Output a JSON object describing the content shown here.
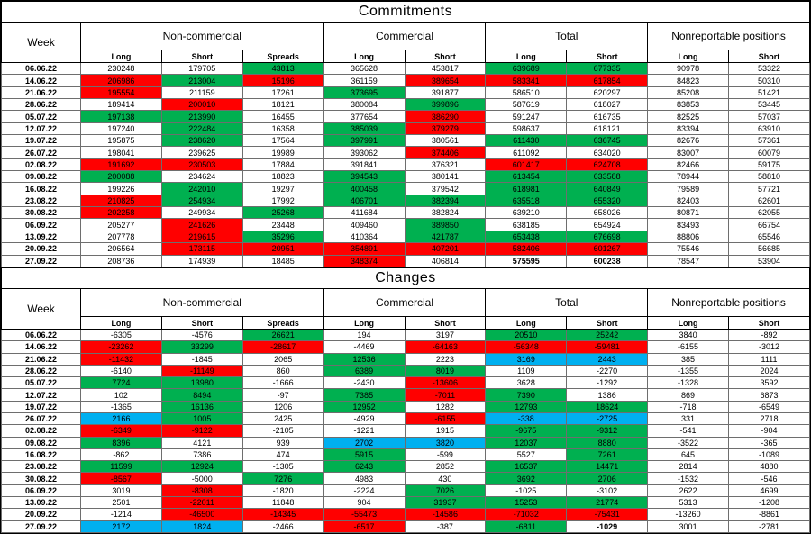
{
  "colors": {
    "g": "#00b050",
    "r": "#ff0000",
    "c": "#00b0f0"
  },
  "headers": {
    "week": "Week",
    "groups": [
      {
        "label": "Non-commercial"
      },
      {
        "label": "Commercial"
      },
      {
        "label": "Total"
      },
      {
        "label": "Nonreportable positions"
      }
    ],
    "columns": [
      "Long",
      "Short",
      "Spreads",
      "Long",
      "Short",
      "Long",
      "Short",
      "Long",
      "Short"
    ]
  },
  "commitments": {
    "title": "Commitments",
    "rows": [
      {
        "date": "06.06.22",
        "values": [
          "230248",
          "179705",
          "43813",
          "365628",
          "453817",
          "639689",
          "677335",
          "90978",
          "53322"
        ],
        "colors": [
          "w",
          "w",
          "g",
          "w",
          "w",
          "g",
          "g",
          "w",
          "w"
        ]
      },
      {
        "date": "14.06.22",
        "values": [
          "206986",
          "213004",
          "15196",
          "361159",
          "389654",
          "583341",
          "617854",
          "84823",
          "50310"
        ],
        "colors": [
          "r",
          "g",
          "r",
          "w",
          "r",
          "r",
          "r",
          "w",
          "w"
        ]
      },
      {
        "date": "21.06.22",
        "values": [
          "195554",
          "211159",
          "17261",
          "373695",
          "391877",
          "586510",
          "620297",
          "85208",
          "51421"
        ],
        "colors": [
          "r",
          "w",
          "w",
          "g",
          "w",
          "w",
          "w",
          "w",
          "w"
        ]
      },
      {
        "date": "28.06.22",
        "values": [
          "189414",
          "200010",
          "18121",
          "380084",
          "399896",
          "587619",
          "618027",
          "83853",
          "53445"
        ],
        "colors": [
          "w",
          "r",
          "w",
          "w",
          "g",
          "w",
          "w",
          "w",
          "w"
        ]
      },
      {
        "date": "05.07.22",
        "values": [
          "197138",
          "213990",
          "16455",
          "377654",
          "386290",
          "591247",
          "616735",
          "82525",
          "57037"
        ],
        "colors": [
          "g",
          "g",
          "w",
          "w",
          "r",
          "w",
          "w",
          "w",
          "w"
        ]
      },
      {
        "date": "12.07.22",
        "values": [
          "197240",
          "222484",
          "16358",
          "385039",
          "379279",
          "598637",
          "618121",
          "83394",
          "63910"
        ],
        "colors": [
          "w",
          "g",
          "w",
          "g",
          "r",
          "w",
          "w",
          "w",
          "w"
        ]
      },
      {
        "date": "19.07.22",
        "values": [
          "195875",
          "238620",
          "17564",
          "397991",
          "380561",
          "611430",
          "636745",
          "82676",
          "57361"
        ],
        "colors": [
          "w",
          "g",
          "w",
          "g",
          "w",
          "g",
          "g",
          "w",
          "w"
        ]
      },
      {
        "date": "26.07.22",
        "values": [
          "198041",
          "239625",
          "19989",
          "393062",
          "374406",
          "611092",
          "634020",
          "83007",
          "60079"
        ],
        "colors": [
          "w",
          "w",
          "w",
          "w",
          "r",
          "w",
          "w",
          "w",
          "w"
        ]
      },
      {
        "date": "02.08.22",
        "values": [
          "191692",
          "230503",
          "17884",
          "391841",
          "376321",
          "601417",
          "624708",
          "82466",
          "59175"
        ],
        "colors": [
          "r",
          "r",
          "w",
          "w",
          "w",
          "r",
          "r",
          "w",
          "w"
        ]
      },
      {
        "date": "09.08.22",
        "values": [
          "200088",
          "234624",
          "18823",
          "394543",
          "380141",
          "613454",
          "633588",
          "78944",
          "58810"
        ],
        "colors": [
          "g",
          "w",
          "w",
          "g",
          "w",
          "g",
          "g",
          "w",
          "w"
        ]
      },
      {
        "date": "16.08.22",
        "values": [
          "199226",
          "242010",
          "19297",
          "400458",
          "379542",
          "618981",
          "640849",
          "79589",
          "57721"
        ],
        "colors": [
          "w",
          "g",
          "w",
          "g",
          "w",
          "g",
          "g",
          "w",
          "w"
        ]
      },
      {
        "date": "23.08.22",
        "values": [
          "210825",
          "254934",
          "17992",
          "406701",
          "382394",
          "635518",
          "655320",
          "82403",
          "62601"
        ],
        "colors": [
          "r",
          "g",
          "w",
          "g",
          "g",
          "g",
          "g",
          "w",
          "w"
        ]
      },
      {
        "date": "30.08.22",
        "values": [
          "202258",
          "249934",
          "25268",
          "411684",
          "382824",
          "639210",
          "658026",
          "80871",
          "62055"
        ],
        "colors": [
          "r",
          "w",
          "g",
          "w",
          "w",
          "w",
          "w",
          "w",
          "w"
        ]
      },
      {
        "date": "06.09.22",
        "values": [
          "205277",
          "241626",
          "23448",
          "409460",
          "389850",
          "638185",
          "654924",
          "83493",
          "66754"
        ],
        "colors": [
          "w",
          "r",
          "w",
          "w",
          "g",
          "w",
          "w",
          "w",
          "w"
        ]
      },
      {
        "date": "13.09.22",
        "values": [
          "207778",
          "219615",
          "35296",
          "410364",
          "421787",
          "653438",
          "676698",
          "88806",
          "65546"
        ],
        "colors": [
          "w",
          "r",
          "g",
          "w",
          "g",
          "g",
          "g",
          "w",
          "w"
        ]
      },
      {
        "date": "20.09.22",
        "values": [
          "206564",
          "173115",
          "20951",
          "354891",
          "407201",
          "582406",
          "601267",
          "75546",
          "56685"
        ],
        "colors": [
          "w",
          "r",
          "r",
          "r",
          "r",
          "r",
          "r",
          "w",
          "w"
        ]
      },
      {
        "date": "27.09.22",
        "values": [
          "208736",
          "174939",
          "18485",
          "348374",
          "406814",
          "575595",
          "600238",
          "78547",
          "53904"
        ],
        "colors": [
          "w",
          "w",
          "w",
          "r",
          "w",
          "b",
          "b",
          "w",
          "w"
        ]
      }
    ]
  },
  "changes": {
    "title": "Changes",
    "rows": [
      {
        "date": "06.06.22",
        "values": [
          "-6305",
          "-4576",
          "26621",
          "194",
          "3197",
          "20510",
          "25242",
          "3840",
          "-892"
        ],
        "colors": [
          "w",
          "w",
          "g",
          "w",
          "w",
          "g",
          "g",
          "w",
          "w"
        ]
      },
      {
        "date": "14.06.22",
        "values": [
          "-23262",
          "33299",
          "-28617",
          "-4469",
          "-64163",
          "-56348",
          "-59481",
          "-6155",
          "-3012"
        ],
        "colors": [
          "r",
          "g",
          "r",
          "w",
          "r",
          "r",
          "r",
          "w",
          "w"
        ]
      },
      {
        "date": "21.06.22",
        "values": [
          "-11432",
          "-1845",
          "2065",
          "12536",
          "2223",
          "3169",
          "2443",
          "385",
          "1111"
        ],
        "colors": [
          "r",
          "w",
          "w",
          "g",
          "w",
          "c",
          "c",
          "w",
          "w"
        ]
      },
      {
        "date": "28.06.22",
        "values": [
          "-6140",
          "-11149",
          "860",
          "6389",
          "8019",
          "1109",
          "-2270",
          "-1355",
          "2024"
        ],
        "colors": [
          "w",
          "r",
          "w",
          "g",
          "g",
          "w",
          "w",
          "w",
          "w"
        ]
      },
      {
        "date": "05.07.22",
        "values": [
          "7724",
          "13980",
          "-1666",
          "-2430",
          "-13606",
          "3628",
          "-1292",
          "-1328",
          "3592"
        ],
        "colors": [
          "g",
          "g",
          "w",
          "w",
          "r",
          "w",
          "w",
          "w",
          "w"
        ]
      },
      {
        "date": "12.07.22",
        "values": [
          "102",
          "8494",
          "-97",
          "7385",
          "-7011",
          "7390",
          "1386",
          "869",
          "6873"
        ],
        "colors": [
          "w",
          "g",
          "w",
          "g",
          "r",
          "g",
          "w",
          "w",
          "w"
        ]
      },
      {
        "date": "19.07.22",
        "values": [
          "-1365",
          "16136",
          "1206",
          "12952",
          "1282",
          "12793",
          "18624",
          "-718",
          "-6549"
        ],
        "colors": [
          "w",
          "g",
          "w",
          "g",
          "w",
          "g",
          "g",
          "w",
          "w"
        ]
      },
      {
        "date": "26.07.22",
        "values": [
          "2166",
          "1005",
          "2425",
          "-4929",
          "-6155",
          "-338",
          "-2725",
          "331",
          "2718"
        ],
        "colors": [
          "c",
          "g",
          "w",
          "w",
          "r",
          "c",
          "c",
          "w",
          "w"
        ]
      },
      {
        "date": "02.08.22",
        "values": [
          "-6349",
          "-9122",
          "-2105",
          "-1221",
          "1915",
          "-9675",
          "-9312",
          "-541",
          "-904"
        ],
        "colors": [
          "r",
          "r",
          "w",
          "w",
          "w",
          "g",
          "g",
          "w",
          "w"
        ]
      },
      {
        "date": "09.08.22",
        "values": [
          "8396",
          "4121",
          "939",
          "2702",
          "3820",
          "12037",
          "8880",
          "-3522",
          "-365"
        ],
        "colors": [
          "g",
          "w",
          "w",
          "c",
          "c",
          "g",
          "g",
          "w",
          "w"
        ]
      },
      {
        "date": "16.08.22",
        "values": [
          "-862",
          "7386",
          "474",
          "5915",
          "-599",
          "5527",
          "7261",
          "645",
          "-1089"
        ],
        "colors": [
          "w",
          "w",
          "w",
          "g",
          "w",
          "w",
          "g",
          "w",
          "w"
        ]
      },
      {
        "date": "23.08.22",
        "values": [
          "11599",
          "12924",
          "-1305",
          "6243",
          "2852",
          "16537",
          "14471",
          "2814",
          "4880"
        ],
        "colors": [
          "g",
          "g",
          "w",
          "g",
          "w",
          "g",
          "g",
          "w",
          "w"
        ]
      },
      {
        "date": "30.08.22",
        "values": [
          "-8567",
          "-5000",
          "7276",
          "4983",
          "430",
          "3692",
          "2706",
          "-1532",
          "-546"
        ],
        "colors": [
          "r",
          "w",
          "g",
          "w",
          "w",
          "g",
          "g",
          "w",
          "w"
        ]
      },
      {
        "date": "06.09.22",
        "values": [
          "3019",
          "-8308",
          "-1820",
          "-2224",
          "7026",
          "-1025",
          "-3102",
          "2622",
          "4699"
        ],
        "colors": [
          "w",
          "r",
          "w",
          "w",
          "g",
          "w",
          "w",
          "w",
          "w"
        ]
      },
      {
        "date": "13.09.22",
        "values": [
          "2501",
          "-22011",
          "11848",
          "904",
          "31937",
          "15253",
          "21774",
          "5313",
          "-1208"
        ],
        "colors": [
          "w",
          "r",
          "w",
          "w",
          "g",
          "g",
          "g",
          "w",
          "w"
        ]
      },
      {
        "date": "20.09.22",
        "values": [
          "-1214",
          "-46500",
          "-14345",
          "-55473",
          "-14586",
          "-71032",
          "-75431",
          "-13260",
          "-8861"
        ],
        "colors": [
          "w",
          "r",
          "r",
          "r",
          "r",
          "r",
          "r",
          "w",
          "w"
        ]
      },
      {
        "date": "27.09.22",
        "values": [
          "2172",
          "1824",
          "-2466",
          "-6517",
          "-387",
          "-6811",
          "-1029",
          "3001",
          "-2781"
        ],
        "colors": [
          "c",
          "c",
          "w",
          "r",
          "w",
          "g",
          "b",
          "w",
          "w"
        ]
      }
    ]
  }
}
